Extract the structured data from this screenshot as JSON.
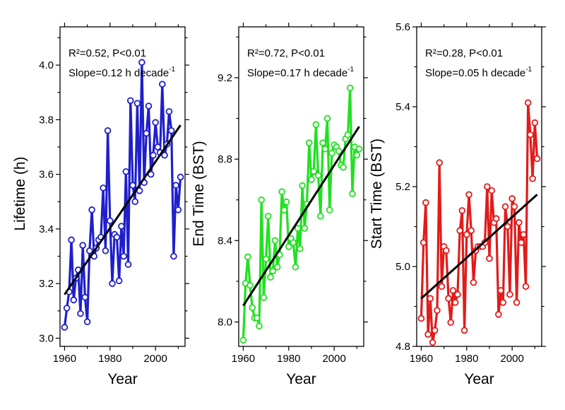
{
  "chart_data": [
    {
      "type": "line",
      "xlabel": "Year",
      "ylabel": "Lifetime (h)",
      "xlim": [
        1958,
        2013
      ],
      "ylim": [
        2.97,
        4.14
      ],
      "xticks": [
        "1960",
        "1980",
        "2000"
      ],
      "yticks": [
        "3.0",
        "3.2",
        "3.4",
        "3.6",
        "3.8",
        "4.0"
      ],
      "color": "#1f1fcc",
      "annotation": {
        "r2": "R²=0.52, P<0.01",
        "slope": "Slope=0.12 h decade",
        "slope_sup": "-1"
      },
      "trend": {
        "x": [
          1960,
          2011
        ],
        "y": [
          3.16,
          3.78
        ]
      },
      "series": [
        {
          "x": [
            1960,
            1961,
            1962,
            1963,
            1964,
            1965,
            1966,
            1967,
            1968,
            1969,
            1970,
            1971,
            1972,
            1973,
            1974,
            1975,
            1976,
            1977,
            1978,
            1979,
            1980,
            1981,
            1982,
            1983,
            1984,
            1985,
            1986,
            1987,
            1988,
            1989,
            1990,
            1991,
            1992,
            1993,
            1994,
            1995,
            1996,
            1997,
            1998,
            1999,
            2000,
            2001,
            2002,
            2003,
            2004,
            2005,
            2006,
            2007,
            2008,
            2009,
            2010,
            2011
          ],
          "y": [
            3.04,
            3.11,
            3.17,
            3.36,
            3.14,
            3.22,
            3.25,
            3.09,
            3.34,
            3.15,
            3.06,
            3.32,
            3.47,
            3.3,
            3.33,
            3.36,
            3.37,
            3.55,
            3.32,
            3.76,
            3.43,
            3.2,
            3.38,
            3.37,
            3.21,
            3.41,
            3.3,
            3.61,
            3.27,
            3.87,
            3.56,
            3.5,
            3.86,
            3.54,
            4.01,
            3.57,
            3.75,
            3.85,
            3.6,
            3.67,
            3.79,
            3.7,
            3.68,
            3.93,
            3.67,
            3.71,
            3.83,
            3.76,
            3.3,
            3.56,
            3.47,
            3.59
          ]
        }
      ]
    },
    {
      "type": "line",
      "xlabel": "Year",
      "ylabel": "End Time (BST)",
      "xlim": [
        1958,
        2013
      ],
      "ylim": [
        7.88,
        9.45
      ],
      "xticks": [
        "1960",
        "1980",
        "2000"
      ],
      "yticks": [
        "8.0",
        "8.4",
        "8.8",
        "9.2"
      ],
      "color": "#22e022",
      "annotation": {
        "r2": "R²=0.72, P<0.01",
        "slope": "Slope=0.17 h decade",
        "slope_sup": "-1"
      },
      "trend": {
        "x": [
          1960,
          2011
        ],
        "y": [
          8.08,
          8.96
        ]
      },
      "series": [
        {
          "x": [
            1960,
            1961,
            1962,
            1963,
            1964,
            1965,
            1966,
            1967,
            1968,
            1969,
            1970,
            1971,
            1972,
            1973,
            1974,
            1975,
            1976,
            1977,
            1978,
            1979,
            1980,
            1981,
            1982,
            1983,
            1984,
            1985,
            1986,
            1987,
            1988,
            1989,
            1990,
            1991,
            1992,
            1993,
            1994,
            1995,
            1996,
            1997,
            1998,
            1999,
            2000,
            2001,
            2002,
            2003,
            2004,
            2005,
            2006,
            2007,
            2008,
            2009,
            2010,
            2011
          ],
          "y": [
            7.91,
            8.19,
            8.32,
            8.18,
            8.07,
            8.02,
            8.02,
            7.98,
            8.6,
            8.12,
            8.31,
            8.52,
            8.22,
            8.25,
            8.4,
            8.27,
            8.33,
            8.64,
            8.55,
            8.59,
            8.37,
            8.41,
            8.39,
            8.27,
            8.46,
            8.36,
            8.67,
            8.46,
            8.58,
            8.88,
            8.7,
            8.74,
            8.97,
            8.72,
            8.52,
            8.88,
            8.85,
            9.0,
            8.55,
            8.83,
            8.87,
            8.86,
            8.84,
            8.77,
            8.76,
            8.9,
            8.92,
            9.15,
            8.63,
            8.86,
            8.82,
            8.85
          ]
        }
      ]
    },
    {
      "type": "line",
      "xlabel": "Year",
      "ylabel": "Start Time (BST)",
      "xlim": [
        1958,
        2013
      ],
      "ylim": [
        4.8,
        5.6
      ],
      "xticks": [
        "1960",
        "1980",
        "2000"
      ],
      "yticks": [
        "4.8",
        "5.0",
        "5.2",
        "5.4",
        "5.6"
      ],
      "color": "#e21b1b",
      "annotation": {
        "r2": "R²=0.28, P<0.01",
        "slope": "Slope=0.05 h decade",
        "slope_sup": "-1"
      },
      "trend": {
        "x": [
          1960,
          2011
        ],
        "y": [
          4.92,
          5.18
        ]
      },
      "series": [
        {
          "x": [
            1960,
            1961,
            1962,
            1963,
            1964,
            1965,
            1966,
            1967,
            1968,
            1969,
            1970,
            1971,
            1972,
            1973,
            1974,
            1975,
            1976,
            1977,
            1978,
            1979,
            1980,
            1981,
            1982,
            1983,
            1984,
            1985,
            1986,
            1987,
            1988,
            1989,
            1990,
            1991,
            1992,
            1993,
            1994,
            1995,
            1996,
            1997,
            1998,
            1999,
            2000,
            2001,
            2002,
            2003,
            2004,
            2005,
            2006,
            2007,
            2008,
            2009,
            2010,
            2011
          ],
          "y": [
            4.87,
            5.06,
            5.16,
            4.83,
            4.92,
            4.81,
            4.84,
            4.89,
            5.26,
            4.95,
            5.05,
            5.04,
            4.92,
            4.86,
            4.94,
            4.91,
            4.93,
            5.09,
            5.14,
            4.84,
            5.08,
            5.18,
            5.09,
            4.96,
            5.04,
            5.05,
            5.05,
            5.05,
            5.06,
            5.2,
            5.02,
            5.19,
            5.11,
            5.12,
            4.88,
            4.94,
            4.91,
            5.15,
            5.1,
            4.93,
            5.17,
            5.15,
            4.91,
            5.11,
            5.06,
            5.08,
            4.95,
            5.41,
            5.33,
            5.22,
            5.36,
            5.27
          ]
        }
      ]
    }
  ]
}
